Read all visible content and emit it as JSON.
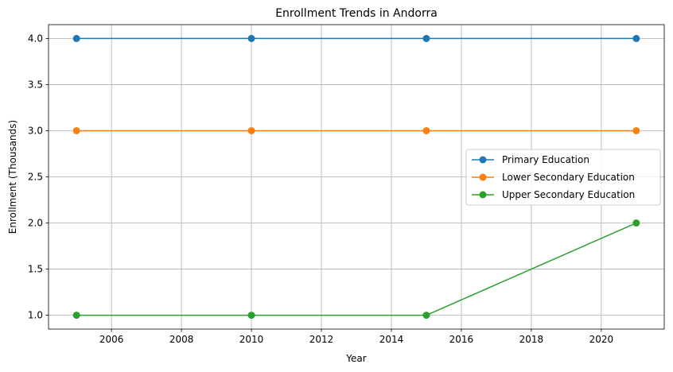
{
  "chart_data": {
    "type": "line",
    "title": "Enrollment Trends in Andorra",
    "xlabel": "Year",
    "ylabel": "Enrollment (Thousands)",
    "x": [
      2005,
      2010,
      2015,
      2021
    ],
    "series": [
      {
        "name": "Primary Education",
        "values": [
          4.0,
          4.0,
          4.0,
          4.0
        ],
        "color": "#1f77b4"
      },
      {
        "name": "Lower Secondary Education",
        "values": [
          3.0,
          3.0,
          3.0,
          3.0
        ],
        "color": "#ff7f0e"
      },
      {
        "name": "Upper Secondary Education",
        "values": [
          1.0,
          1.0,
          1.0,
          2.0
        ],
        "color": "#2ca02c"
      }
    ],
    "xlim": [
      2004.2,
      2021.8
    ],
    "ylim": [
      0.85,
      4.15
    ],
    "xticks": [
      2006,
      2008,
      2010,
      2012,
      2014,
      2016,
      2018,
      2020
    ],
    "yticks": [
      1.0,
      1.5,
      2.0,
      2.5,
      3.0,
      3.5,
      4.0
    ],
    "grid": true,
    "legend_position": "center-right",
    "marker": "circle"
  }
}
